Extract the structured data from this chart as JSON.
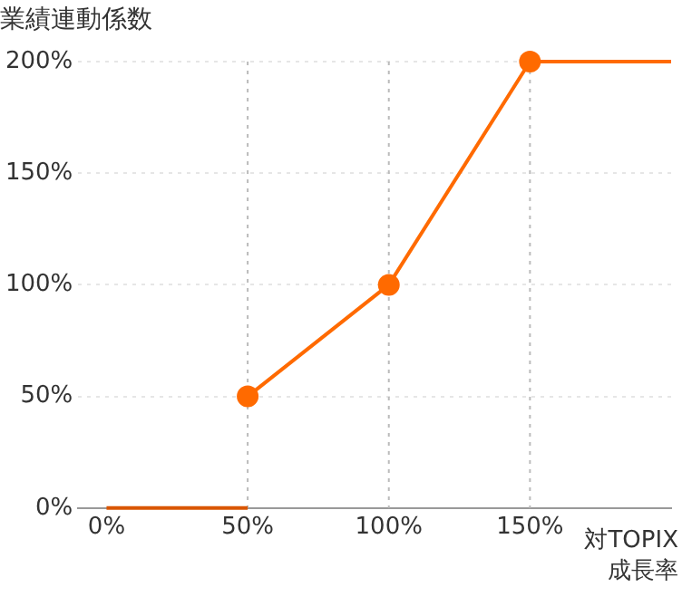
{
  "chart_data": {
    "type": "line",
    "ylabel": "業績連動係数",
    "xlabel": "対TOPIX成長率",
    "xlim": [
      -10,
      200
    ],
    "xticks": [
      {
        "value": 0,
        "label": "0%"
      },
      {
        "value": 50,
        "label": "50%"
      },
      {
        "value": 100,
        "label": "100%"
      },
      {
        "value": 150,
        "label": "150%"
      }
    ],
    "ylim": [
      0,
      200
    ],
    "yticks": [
      {
        "value": 0,
        "label": "0%"
      },
      {
        "value": 50,
        "label": "50%"
      },
      {
        "value": 100,
        "label": "100%"
      },
      {
        "value": 150,
        "label": "150%"
      },
      {
        "value": 200,
        "label": "200%"
      }
    ],
    "series": [
      {
        "color": "#d95500",
        "x": [
          0,
          50
        ],
        "values": [
          0,
          0
        ],
        "marker": "none"
      },
      {
        "color": "#ff6a00",
        "x": [
          50,
          100,
          150
        ],
        "values": [
          50,
          100,
          200
        ],
        "marker": "circle"
      },
      {
        "color": "#ff6a00",
        "x": [
          150,
          200
        ],
        "values": [
          200,
          200
        ],
        "marker": "none"
      }
    ],
    "ref_lines": [
      {
        "axis": "x",
        "value": 50,
        "color": "#bbbbbb",
        "line_style": "dotted"
      },
      {
        "axis": "x",
        "value": 100,
        "color": "#bbbbbb",
        "line_style": "dotted"
      },
      {
        "axis": "x",
        "value": 150,
        "color": "#bbbbbb",
        "line_style": "dotted"
      }
    ],
    "grid": "y",
    "legend": false
  }
}
